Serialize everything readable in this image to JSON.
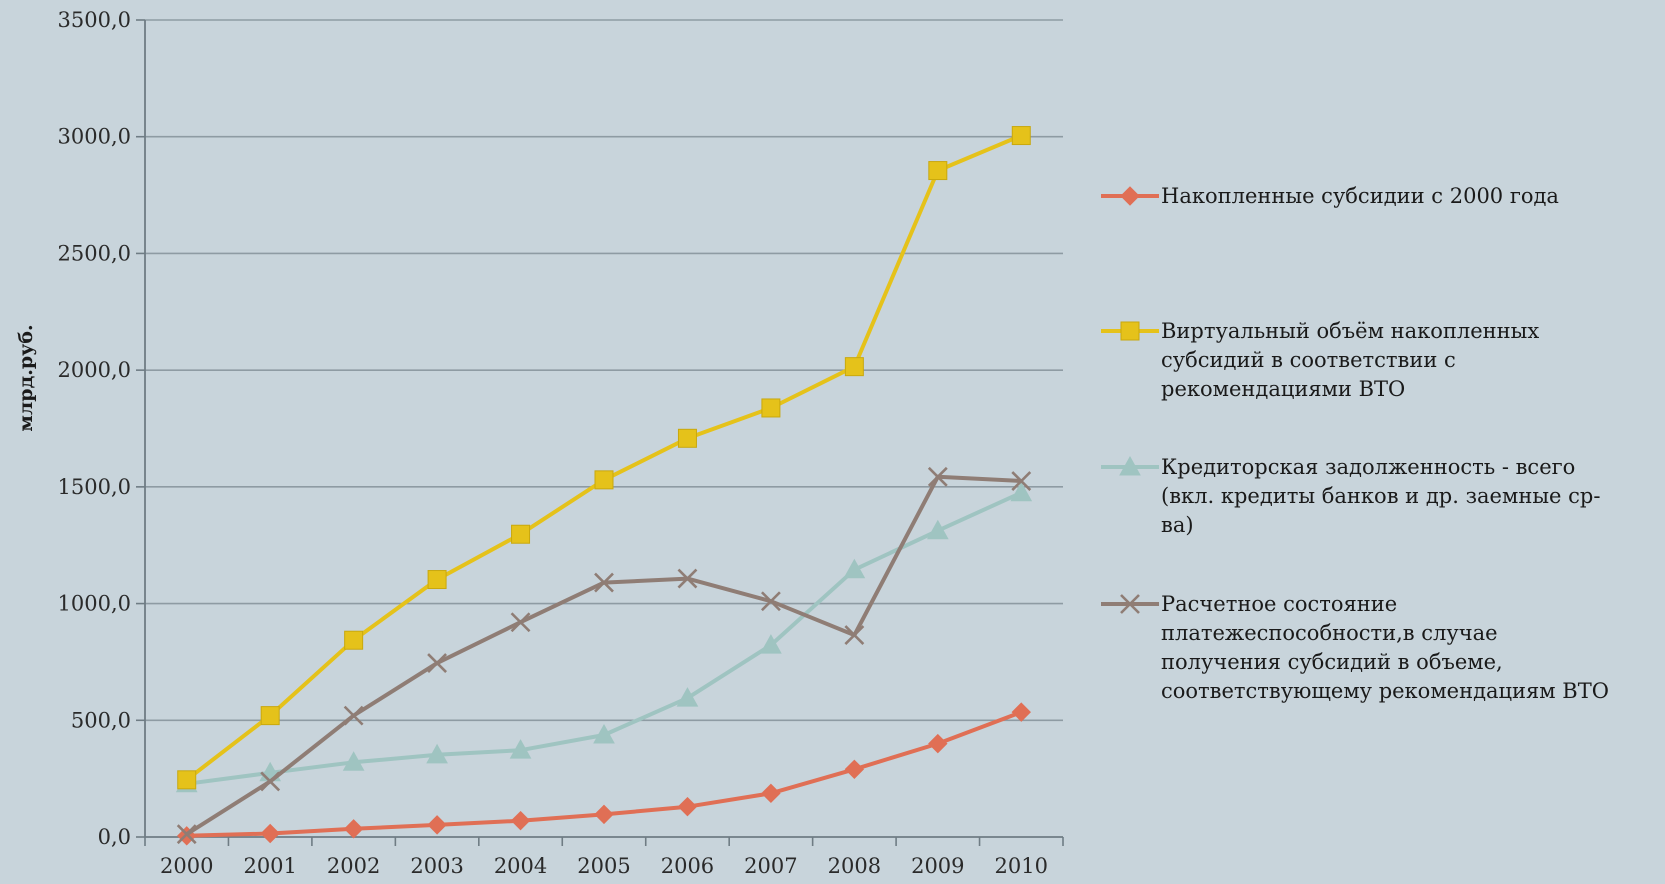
{
  "chart_data": {
    "type": "line",
    "title": "",
    "xlabel": "",
    "ylabel": "млрд.руб.",
    "ylim": [
      0,
      3500
    ],
    "y_ticks": [
      "0,0",
      "500,0",
      "1000,0",
      "1500,0",
      "2000,0",
      "2500,0",
      "3000,0",
      "3500,0"
    ],
    "y_tick_values": [
      0,
      500,
      1000,
      1500,
      2000,
      2500,
      3000,
      3500
    ],
    "categories": [
      "2000",
      "2001",
      "2002",
      "2003",
      "2004",
      "2005",
      "2006",
      "2007",
      "2008",
      "2009",
      "2010"
    ],
    "grid": "horizontal",
    "legend_position": "right",
    "series": [
      {
        "name": "Накопленные субсидии с 2000 года",
        "legend_lines": [
          "Накопленные субсидии с 2000 года"
        ],
        "color": "#e06f55",
        "marker": "diamond",
        "values": [
          5,
          15,
          35,
          52,
          70,
          97,
          130,
          187,
          290,
          400,
          535
        ]
      },
      {
        "name": "Виртуальный объём накопленных субсидий в соответствии с рекомендациями ВТО",
        "legend_lines": [
          "Виртуальный объём накопленных",
          "субсидий в соответствии с",
          "рекомендациями ВТО"
        ],
        "color": "#e5c21a",
        "marker": "square",
        "values": [
          245,
          520,
          843,
          1103,
          1297,
          1530,
          1708,
          1838,
          2015,
          2855,
          3005
        ]
      },
      {
        "name": "Кредиторская задолженность - всего (вкл. кредиты банков и др. заемные ср-ва)",
        "legend_lines": [
          "Кредиторская задолженность - всего",
          "(вкл. кредиты банков и др. заемные ср-",
          "ва)"
        ],
        "color": "#9fc4c1",
        "marker": "triangle",
        "values": [
          228,
          275,
          320,
          352,
          372,
          437,
          595,
          822,
          1145,
          1312,
          1475
        ]
      },
      {
        "name": "Расчетное состояние платежеспособности,в случае получения субсидий в объеме, соответствующему рекомендациям ВТО",
        "legend_lines": [
          "Расчетное состояние",
          "платежеспособности,в случае",
          "получения субсидий в объеме,",
          "соответствующему рекомендациям ВТО"
        ],
        "color": "#8f7d75",
        "marker": "x",
        "values": [
          12,
          238,
          520,
          745,
          920,
          1090,
          1107,
          1010,
          865,
          1543,
          1525
        ]
      }
    ]
  }
}
